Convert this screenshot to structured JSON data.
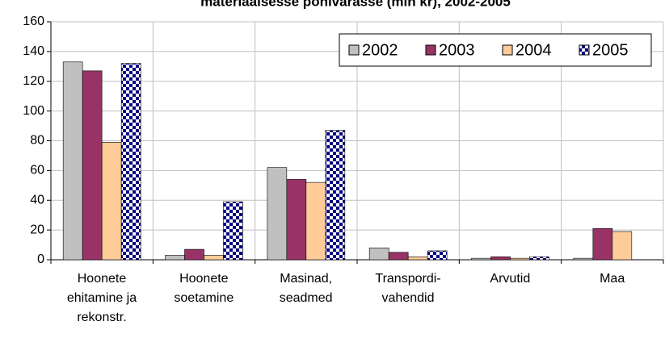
{
  "chart_data": {
    "type": "bar",
    "title": "materiaalsesse põhivarasse (mln kr), 2002-2005",
    "categories": [
      "Hoonete\nehitamine ja\nrekonstr.",
      "Hoonete\nsoetamine",
      "Masinad,\nseadmed",
      "Transpordi-\nvahendid",
      "Arvutid",
      "Maa"
    ],
    "series": [
      {
        "name": "2002",
        "color": "#c0c0c0",
        "values": [
          133,
          3,
          62,
          8,
          1,
          1
        ]
      },
      {
        "name": "2003",
        "color": "#993366",
        "values": [
          127,
          7,
          54,
          5,
          2,
          21
        ]
      },
      {
        "name": "2004",
        "color": "#ffcc99",
        "values": [
          79,
          3,
          52,
          2,
          1,
          19
        ]
      },
      {
        "name": "2005",
        "color": "#000080",
        "pattern": "checker",
        "values": [
          132,
          39,
          87,
          6,
          2,
          null
        ]
      }
    ],
    "ylim": [
      0,
      160
    ],
    "yticks": [
      0,
      20,
      40,
      60,
      80,
      100,
      120,
      140,
      160
    ],
    "grid": true,
    "legend": "top-right"
  }
}
